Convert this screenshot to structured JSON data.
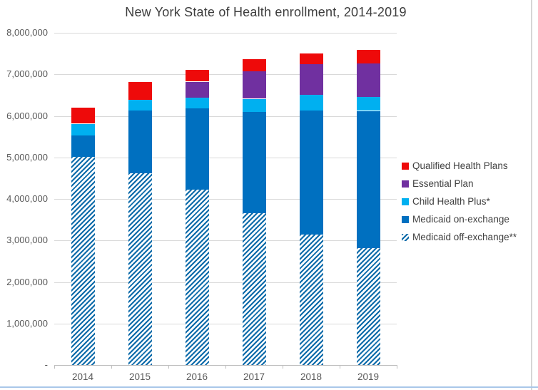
{
  "title": "New York State of Health enrollment, 2014-2019",
  "chart_data": {
    "type": "bar",
    "stacked": true,
    "title": "New York State of Health enrollment, 2014-2019",
    "categories": [
      "2014",
      "2015",
      "2016",
      "2017",
      "2018",
      "2019"
    ],
    "series": [
      {
        "name": "Qualified Health Plans",
        "color": "#ee0a0a",
        "pattern": "solid",
        "values": [
          380000,
          430000,
          280000,
          290000,
          260000,
          320000
        ]
      },
      {
        "name": "Essential Plan",
        "color": "#7030a0",
        "pattern": "solid",
        "values": [
          0,
          0,
          380000,
          660000,
          740000,
          800000
        ]
      },
      {
        "name": "Child Health Plus*",
        "color": "#00b0f0",
        "pattern": "solid",
        "values": [
          280000,
          260000,
          250000,
          310000,
          370000,
          350000
        ]
      },
      {
        "name": "Medicaid on-exchange",
        "color": "#0070c0",
        "pattern": "solid",
        "values": [
          520000,
          1510000,
          1970000,
          2430000,
          2980000,
          3290000
        ]
      },
      {
        "name": "Medicaid off-exchange**",
        "color": "#0070c0",
        "pattern": "diagonal-hatch",
        "values": [
          5010000,
          4620000,
          4220000,
          3670000,
          3150000,
          2830000
        ]
      }
    ],
    "totals": [
      6190000,
      6820000,
      7100000,
      7360000,
      7500000,
      7590000
    ],
    "ylim": [
      0,
      8000000
    ],
    "ytick_interval": 1000000,
    "ytick_labels": [
      "-",
      "1,000,000",
      "2,000,000",
      "3,000,000",
      "4,000,000",
      "5,000,000",
      "6,000,000",
      "7,000,000",
      "8,000,000"
    ],
    "xlabel": "",
    "ylabel": "",
    "grid": true,
    "legend_position": "right"
  },
  "colors": {
    "gridline": "#d9d9d9",
    "axis": "#bfbfbf",
    "axis_text": "#595959",
    "title_text": "#3d3d3d",
    "legend_text": "#404040",
    "bottom_edge": "#a9c7e9",
    "right_edge": "#d6d6d6"
  }
}
